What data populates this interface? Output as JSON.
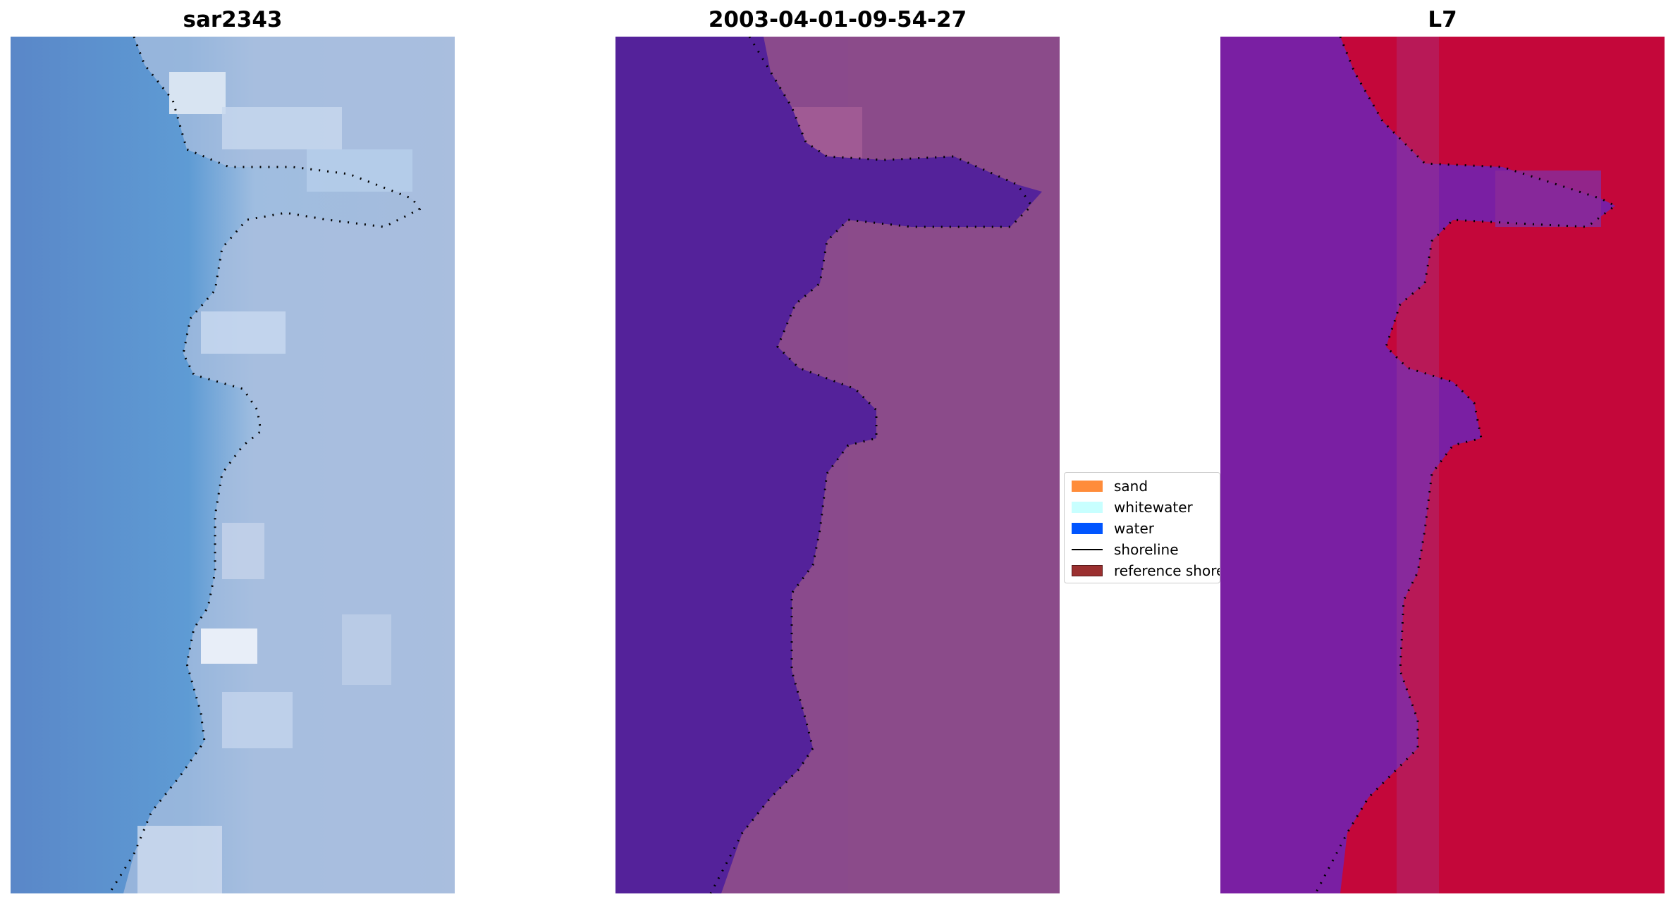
{
  "panels": [
    {
      "title": "sar2343"
    },
    {
      "title": "2003-04-01-09-54-27"
    },
    {
      "title": "L7"
    }
  ],
  "legend": {
    "items": [
      {
        "label": "sand",
        "color": "#ff8c3a",
        "kind": "patch"
      },
      {
        "label": "whitewater",
        "color": "#c8ffff",
        "kind": "patch"
      },
      {
        "label": "water",
        "color": "#0055ff",
        "kind": "patch"
      },
      {
        "label": "shoreline",
        "color": "#000000",
        "kind": "line"
      },
      {
        "label": "reference shoreline",
        "color": "#9b3030",
        "kind": "patch"
      }
    ]
  },
  "colors": {
    "rgb_water": "#5a8fd0",
    "rgb_land": "#a8bedd",
    "rgb_whitewater": "#dfe8f4",
    "classified_water": "#54229a",
    "classified_land": "#8a4a8c",
    "mndwi_water": "#7a1fa3",
    "mndwi_land": "#c4073a",
    "shoreline_dots": "#000000"
  }
}
